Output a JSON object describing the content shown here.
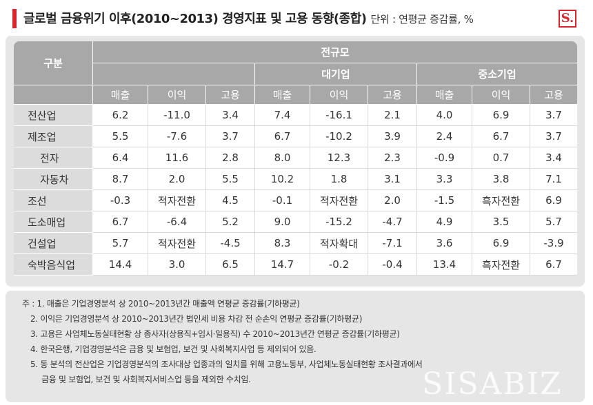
{
  "header": {
    "title": "글로벌 금융위기 이후(2010~2013) 경영지표 및 고용 동향(종합)",
    "unit": "단위 : 연평균 증감률, %",
    "logo": "S."
  },
  "table": {
    "corner_label": "구분",
    "groups": [
      "전규모",
      "대기업",
      "중소기업"
    ],
    "metrics": [
      "매출",
      "이익",
      "고용"
    ],
    "rows": [
      {
        "label": "전산업",
        "indent": false,
        "cells": [
          "6.2",
          "-11.0",
          "3.4",
          "7.4",
          "-16.1",
          "2.1",
          "4.0",
          "6.9",
          "3.7"
        ]
      },
      {
        "label": "제조업",
        "indent": false,
        "cells": [
          "5.5",
          "-7.6",
          "3.7",
          "6.7",
          "-10.2",
          "3.9",
          "2.4",
          "6.7",
          "3.7"
        ]
      },
      {
        "label": "전자",
        "indent": true,
        "cells": [
          "6.4",
          "11.6",
          "2.8",
          "8.0",
          "12.3",
          "2.3",
          "-0.9",
          "0.7",
          "3.4"
        ]
      },
      {
        "label": "자동차",
        "indent": true,
        "cells": [
          "8.7",
          "2.0",
          "5.5",
          "10.2",
          "1.8",
          "3.1",
          "3.3",
          "3.8",
          "7.1"
        ]
      },
      {
        "label": "조선",
        "indent": false,
        "cells": [
          "-0.3",
          "적자전환",
          "4.5",
          "-0.1",
          "적자전환",
          "2.0",
          "-1.5",
          "흑자전환",
          "6.9"
        ]
      },
      {
        "label": "도소매업",
        "indent": false,
        "cells": [
          "6.7",
          "-6.4",
          "5.2",
          "9.0",
          "-15.2",
          "-4.7",
          "4.9",
          "3.5",
          "5.7"
        ]
      },
      {
        "label": "건설업",
        "indent": false,
        "cells": [
          "5.7",
          "적자전환",
          "-4.5",
          "8.3",
          "적자확대",
          "-7.1",
          "3.6",
          "6.9",
          "-3.9"
        ]
      },
      {
        "label": "숙박음식업",
        "indent": false,
        "cells": [
          "14.4",
          "3.0",
          "6.5",
          "14.7",
          "-0.2",
          "-0.4",
          "13.4",
          "흑자전환",
          "6.7"
        ]
      }
    ]
  },
  "notes": [
    "주 : 1. 매출은 기업경영분석 상 2010~2013년간 매출액 연평균 증감률(기하평균)",
    "2. 이익은 기업경영분석 상 2010~2013년간 법인세 비용 차감 전 순손익 연평균 증감률(기하평균)",
    "3. 고용은 사업체노동실태현황 상 종사자(상용직+임시·일용직) 수 2010~2013년간 연평균 증감률(기하평균)",
    "4. 한국은행, 기업경영분석은 금융 및 보험업, 보건 및 사회복지사업 등 제외되어 있음.",
    "5. 동 분석의 전산업은 기업경영분석의 조사대상 업종과의 일치를 위해 고용노동부, 사업체노동실태현황 조사결과에서",
    "금융 및 보험업, 보건 및 사회복지서비스업 등을 제외한 수치임."
  ],
  "watermark": "SISABIZ"
}
